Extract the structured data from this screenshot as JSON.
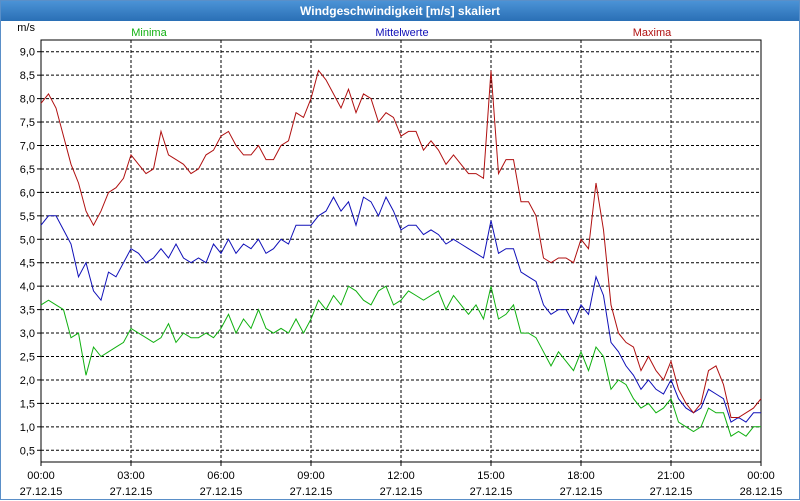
{
  "window": {
    "title": "Windgeschwindigkeit [m/s] skaliert"
  },
  "chart_data": {
    "type": "line",
    "title": "Windgeschwindigkeit [m/s] skaliert",
    "ylabel": "m/s",
    "xlabel": "",
    "ylim": [
      0.25,
      9.25
    ],
    "xlim_hours": [
      0,
      24
    ],
    "grid": true,
    "y_ticks": [
      "0,5",
      "1,0",
      "1,5",
      "2,0",
      "2,5",
      "3,0",
      "3,5",
      "4,0",
      "4,5",
      "5,0",
      "5,5",
      "6,0",
      "6,5",
      "7,0",
      "7,5",
      "8,0",
      "8,5",
      "9,0"
    ],
    "x_ticks": [
      {
        "time": "00:00",
        "date": "27.12.15"
      },
      {
        "time": "03:00",
        "date": "27.12.15"
      },
      {
        "time": "06:00",
        "date": "27.12.15"
      },
      {
        "time": "09:00",
        "date": "27.12.15"
      },
      {
        "time": "12:00",
        "date": "27.12.15"
      },
      {
        "time": "15:00",
        "date": "27.12.15"
      },
      {
        "time": "18:00",
        "date": "27.12.15"
      },
      {
        "time": "21:00",
        "date": "27.12.15"
      },
      {
        "time": "00:00",
        "date": "28.12.15"
      }
    ],
    "x": [
      0.0,
      0.25,
      0.5,
      0.75,
      1.0,
      1.25,
      1.5,
      1.75,
      2.0,
      2.25,
      2.5,
      2.75,
      3.0,
      3.25,
      3.5,
      3.75,
      4.0,
      4.25,
      4.5,
      4.75,
      5.0,
      5.25,
      5.5,
      5.75,
      6.0,
      6.25,
      6.5,
      6.75,
      7.0,
      7.25,
      7.5,
      7.75,
      8.0,
      8.25,
      8.5,
      8.75,
      9.0,
      9.25,
      9.5,
      9.75,
      10.0,
      10.25,
      10.5,
      10.75,
      11.0,
      11.25,
      11.5,
      11.75,
      12.0,
      12.25,
      12.5,
      12.75,
      13.0,
      13.25,
      13.5,
      13.75,
      14.0,
      14.25,
      14.5,
      14.75,
      15.0,
      15.25,
      15.5,
      15.75,
      16.0,
      16.25,
      16.5,
      16.75,
      17.0,
      17.25,
      17.5,
      17.75,
      18.0,
      18.25,
      18.5,
      18.75,
      19.0,
      19.25,
      19.5,
      19.75,
      20.0,
      20.25,
      20.5,
      20.75,
      21.0,
      21.25,
      21.5,
      21.75,
      22.0,
      22.25,
      22.5,
      22.75,
      23.0,
      23.25,
      23.5,
      23.75,
      24.0
    ],
    "series": [
      {
        "name": "Minima",
        "color": "#10b010",
        "values": [
          3.6,
          3.7,
          3.6,
          3.5,
          2.9,
          3.0,
          2.1,
          2.7,
          2.5,
          2.6,
          2.7,
          2.8,
          3.1,
          3.0,
          2.9,
          2.8,
          2.9,
          3.2,
          2.8,
          3.0,
          2.9,
          2.9,
          3.0,
          2.9,
          3.1,
          3.4,
          3.0,
          3.3,
          3.1,
          3.5,
          3.1,
          3.0,
          3.1,
          3.0,
          3.3,
          3.0,
          3.3,
          3.7,
          3.5,
          3.8,
          3.6,
          4.0,
          3.9,
          3.7,
          3.6,
          3.9,
          4.0,
          3.6,
          3.7,
          3.9,
          3.8,
          3.7,
          3.8,
          3.9,
          3.5,
          3.8,
          3.6,
          3.4,
          3.6,
          3.3,
          4.0,
          3.3,
          3.4,
          3.6,
          3.0,
          3.0,
          2.9,
          2.6,
          2.3,
          2.6,
          2.4,
          2.2,
          2.6,
          2.2,
          2.7,
          2.5,
          1.8,
          2.0,
          1.9,
          1.6,
          1.4,
          1.5,
          1.3,
          1.4,
          1.6,
          1.1,
          1.0,
          0.9,
          1.0,
          1.4,
          1.3,
          1.3,
          0.8,
          0.9,
          0.8,
          1.0,
          1.0
        ]
      },
      {
        "name": "Mittelwerte",
        "color": "#1010b8",
        "values": [
          5.3,
          5.5,
          5.5,
          5.2,
          4.9,
          4.2,
          4.5,
          3.9,
          3.7,
          4.3,
          4.2,
          4.5,
          4.8,
          4.7,
          4.5,
          4.6,
          4.8,
          4.6,
          4.9,
          4.6,
          4.5,
          4.6,
          4.5,
          4.9,
          4.7,
          5.0,
          4.7,
          4.9,
          4.8,
          5.0,
          4.7,
          4.8,
          5.0,
          4.9,
          5.3,
          5.3,
          5.3,
          5.5,
          5.6,
          5.9,
          5.6,
          5.8,
          5.3,
          5.9,
          5.8,
          5.5,
          5.9,
          5.6,
          5.2,
          5.3,
          5.3,
          5.1,
          5.2,
          5.1,
          4.9,
          5.0,
          4.9,
          4.8,
          4.7,
          4.6,
          5.4,
          4.7,
          4.8,
          4.8,
          4.3,
          4.2,
          4.1,
          3.6,
          3.4,
          3.5,
          3.5,
          3.2,
          3.6,
          3.4,
          4.2,
          3.8,
          2.8,
          2.6,
          2.3,
          2.1,
          1.8,
          2.0,
          1.8,
          1.7,
          2.0,
          1.6,
          1.4,
          1.3,
          1.4,
          1.8,
          1.7,
          1.6,
          1.1,
          1.2,
          1.1,
          1.3,
          1.3
        ]
      },
      {
        "name": "Maxima",
        "color": "#b01010",
        "values": [
          7.9,
          8.1,
          7.8,
          7.2,
          6.6,
          6.2,
          5.6,
          5.3,
          5.6,
          6.0,
          6.1,
          6.3,
          6.8,
          6.6,
          6.4,
          6.5,
          7.3,
          6.8,
          6.7,
          6.6,
          6.4,
          6.5,
          6.8,
          6.9,
          7.2,
          7.3,
          7.0,
          6.8,
          6.8,
          7.0,
          6.7,
          6.7,
          7.0,
          7.1,
          7.7,
          7.6,
          8.0,
          8.6,
          8.4,
          8.1,
          7.8,
          8.2,
          7.7,
          8.1,
          8.0,
          7.5,
          7.7,
          7.6,
          7.2,
          7.3,
          7.3,
          6.9,
          7.1,
          6.9,
          6.6,
          6.8,
          6.6,
          6.4,
          6.4,
          6.3,
          8.6,
          6.4,
          6.7,
          6.7,
          5.8,
          5.8,
          5.5,
          4.6,
          4.5,
          4.6,
          4.6,
          4.5,
          5.0,
          4.8,
          6.2,
          5.2,
          3.6,
          3.0,
          2.8,
          2.7,
          2.2,
          2.5,
          2.2,
          2.0,
          2.4,
          1.8,
          1.5,
          1.3,
          1.5,
          2.2,
          2.3,
          1.9,
          1.2,
          1.2,
          1.3,
          1.4,
          1.6
        ]
      }
    ]
  }
}
